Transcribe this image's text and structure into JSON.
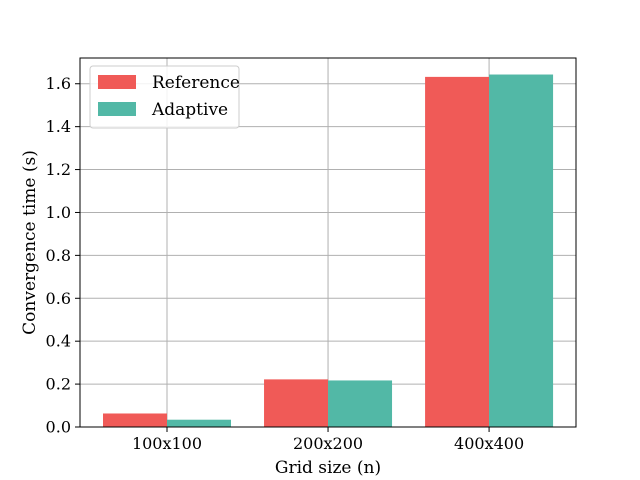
{
  "chart_data": {
    "type": "bar",
    "title": "",
    "xlabel": "Grid size (n)",
    "ylabel": "Convergence time (s)",
    "categories": [
      "100x100",
      "200x200",
      "400x400"
    ],
    "series": [
      {
        "name": "Reference",
        "color": "#f05a57",
        "values": [
          0.063,
          0.222,
          1.632
        ]
      },
      {
        "name": "Adaptive",
        "color": "#52b8a6",
        "values": [
          0.034,
          0.217,
          1.643
        ]
      }
    ],
    "ylim": [
      0,
      1.72
    ],
    "yticks": [
      0.0,
      0.2,
      0.4,
      0.6,
      0.8,
      1.0,
      1.2,
      1.4,
      1.6
    ],
    "ytick_labels": [
      "0.0",
      "0.2",
      "0.4",
      "0.6",
      "0.8",
      "1.0",
      "1.2",
      "1.4",
      "1.6"
    ],
    "grid": true,
    "legend_position": "top-left"
  }
}
